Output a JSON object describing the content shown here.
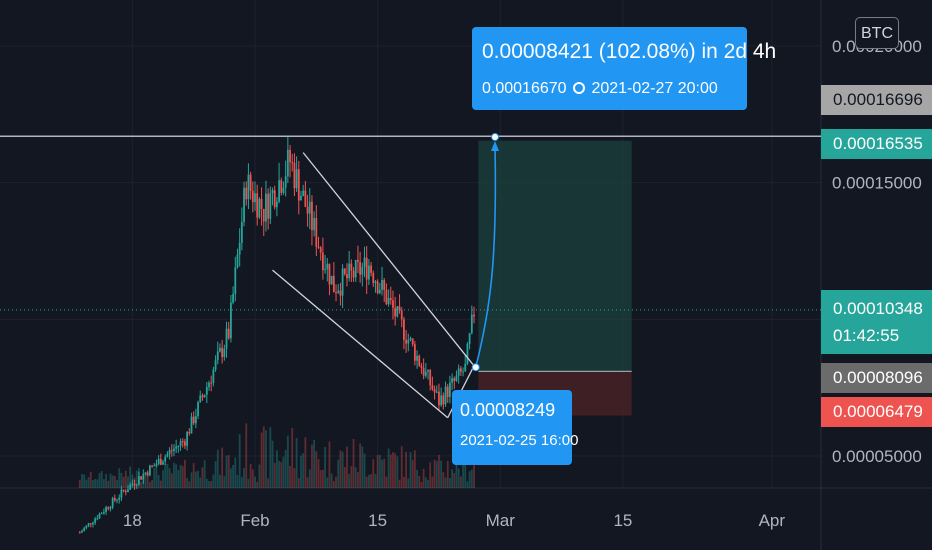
{
  "symbol_button": "BTC",
  "colors": {
    "background": "#131722",
    "up": "#26a69a",
    "down": "#ef5350",
    "accent": "#2196f3",
    "level_line": "#b2b5be",
    "profit_zone": "#1b4740",
    "loss_zone": "#4a2226"
  },
  "price_tags": [
    {
      "value": "0.00016696",
      "color": "#a6a6a6",
      "text_color": "#131722"
    },
    {
      "value": "0.00016535",
      "color": "#26a69a",
      "text_color": "#ffffff"
    },
    {
      "value": "0.00010348",
      "sub": "01:42:55",
      "color": "#26a69a",
      "text_color": "#ffffff"
    },
    {
      "value": "0.00008096",
      "color": "#6b6b6b",
      "text_color": "#ffffff"
    },
    {
      "value": "0.00006479",
      "color": "#ef5350",
      "text_color": "#ffffff"
    }
  ],
  "callouts": {
    "target": {
      "line1": "0.00008421 (102.08%) in 2d 4h",
      "line2_price": "0.00016670",
      "line2_time": "2021-02-27  20:00"
    },
    "entry": {
      "line1": "0.00008249",
      "line2": "2021-02-25 16:00"
    }
  },
  "chart_data": {
    "type": "candlestick",
    "symbol": "BTC",
    "x_ticks": [
      "18",
      "Feb",
      "15",
      "Mar",
      "15",
      "Apr"
    ],
    "y_ticks": [
      "0.00020000",
      "0.00015000",
      "0.00005000"
    ],
    "ylim": [
      2e-05,
      0.00022
    ],
    "current_price": 0.00010348,
    "candles_close_anchors": [
      {
        "date": "2021-01-12",
        "close": 2.2e-05
      },
      {
        "date": "2021-01-18",
        "close": 4e-05
      },
      {
        "date": "2021-01-24",
        "close": 5.6e-05
      },
      {
        "date": "2021-01-29",
        "close": 9.5e-05
      },
      {
        "date": "2021-01-31",
        "close": 0.00015
      },
      {
        "date": "2021-02-02",
        "close": 0.00014
      },
      {
        "date": "2021-02-05",
        "close": 0.000158
      },
      {
        "date": "2021-02-10",
        "close": 0.000112
      },
      {
        "date": "2021-02-14",
        "close": 0.00012
      },
      {
        "date": "2021-02-18",
        "close": 9.6e-05
      },
      {
        "date": "2021-02-22",
        "close": 7e-05
      },
      {
        "date": "2021-02-25",
        "close": 8.2e-05
      },
      {
        "date": "2021-02-26",
        "close": 0.000103
      }
    ],
    "drawings": {
      "resistance_level": 0.00016696,
      "falling_wedge": true,
      "long_position": {
        "entry": 8.096e-05,
        "target": 0.00016535,
        "stop": 6.479e-05
      },
      "projection": {
        "from": {
          "date": "2021-02-25 16:00",
          "price": 8.249e-05
        },
        "to": {
          "date": "2021-02-27 20:00",
          "price": 0.0001667
        },
        "change": "0.00008421 (102.08%) in 2d 4h"
      }
    }
  }
}
